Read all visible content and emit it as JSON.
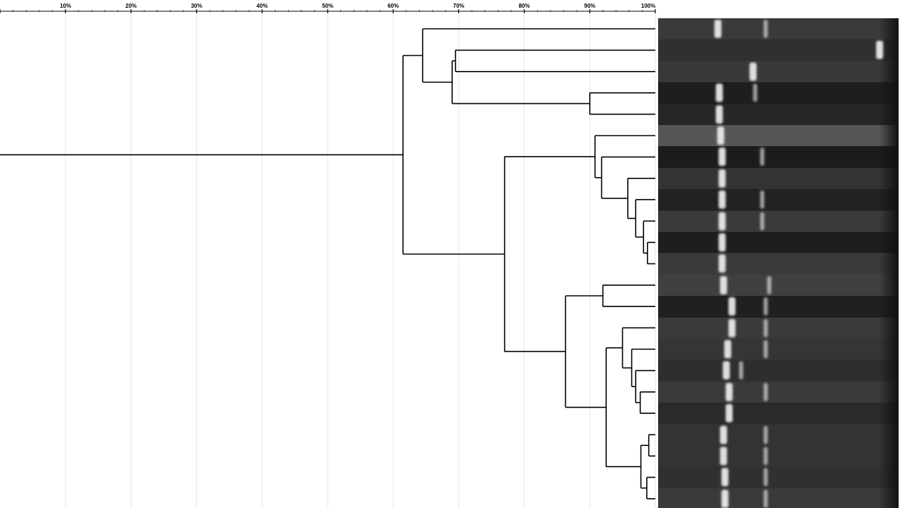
{
  "axis": {
    "unit": "%",
    "range": [
      0,
      100
    ],
    "tick_labels": [
      "10%",
      "20%",
      "30%",
      "40%",
      "50%",
      "60%",
      "70%",
      "80%",
      "90%",
      "100%"
    ],
    "gridlines": true
  },
  "tree": {
    "sim": 61.5,
    "children": [
      {
        "sim": 64.5,
        "children": [
          {
            "leaf": 0
          },
          {
            "sim": 69,
            "children": [
              {
                "sim": 69.5,
                "children": [
                  {
                    "leaf": 1
                  },
                  {
                    "leaf": 2
                  }
                ]
              },
              {
                "sim": 90,
                "children": [
                  {
                    "leaf": 3
                  },
                  {
                    "leaf": 4
                  }
                ]
              }
            ]
          }
        ]
      },
      {
        "sim": 77,
        "children": [
          {
            "sim": 90.8,
            "children": [
              {
                "leaf": 5
              },
              {
                "sim": 91.8,
                "children": [
                  {
                    "leaf": 6
                  },
                  {
                    "sim": 95.8,
                    "children": [
                      {
                        "leaf": 7
                      },
                      {
                        "sim": 97,
                        "children": [
                          {
                            "leaf": 8
                          },
                          {
                            "sim": 98.2,
                            "children": [
                              {
                                "leaf": 9
                              },
                              {
                                "sim": 98.8,
                                "children": [
                                  {
                                    "leaf": 10
                                  },
                                  {
                                    "leaf": 11
                                  }
                                ]
                              }
                            ]
                          }
                        ]
                      }
                    ]
                  }
                ]
              }
            ]
          },
          {
            "sim": 86.3,
            "children": [
              {
                "sim": 92,
                "children": [
                  {
                    "leaf": 12
                  },
                  {
                    "leaf": 13
                  }
                ]
              },
              {
                "sim": 92.5,
                "children": [
                  {
                    "sim": 95,
                    "children": [
                      {
                        "leaf": 14
                      },
                      {
                        "sim": 96.4,
                        "children": [
                          {
                            "leaf": 15
                          },
                          {
                            "sim": 97,
                            "children": [
                              {
                                "leaf": 16
                              },
                              {
                                "sim": 97.7,
                                "children": [
                                  {
                                    "leaf": 17
                                  },
                                  {
                                    "leaf": 18
                                  }
                                ]
                              }
                            ]
                          }
                        ]
                      }
                    ]
                  },
                  {
                    "sim": 97.8,
                    "children": [
                      {
                        "sim": 99,
                        "children": [
                          {
                            "leaf": 19
                          },
                          {
                            "leaf": 20
                          }
                        ]
                      },
                      {
                        "sim": 98.7,
                        "children": [
                          {
                            "leaf": 21
                          },
                          {
                            "leaf": 22
                          }
                        ]
                      }
                    ]
                  }
                ]
              }
            ]
          }
        ]
      }
    ]
  },
  "gel": {
    "lane_count": 23,
    "lane_shades": [
      "#3a3a3a",
      "#303030",
      "#383838",
      "#1e1e1e",
      "#262626",
      "#555555",
      "#1c1c1c",
      "#333333",
      "#222222",
      "#3a3a3a",
      "#1e1e1e",
      "#3a3a3a",
      "#404040",
      "#202020",
      "#3a3a3a",
      "#353535",
      "#2e2e2e",
      "#3a3a3a",
      "#2a2a2a",
      "#333333",
      "#333333",
      "#303030",
      "#3a3a3a"
    ],
    "band_color": "#f2f2f2"
  }
}
